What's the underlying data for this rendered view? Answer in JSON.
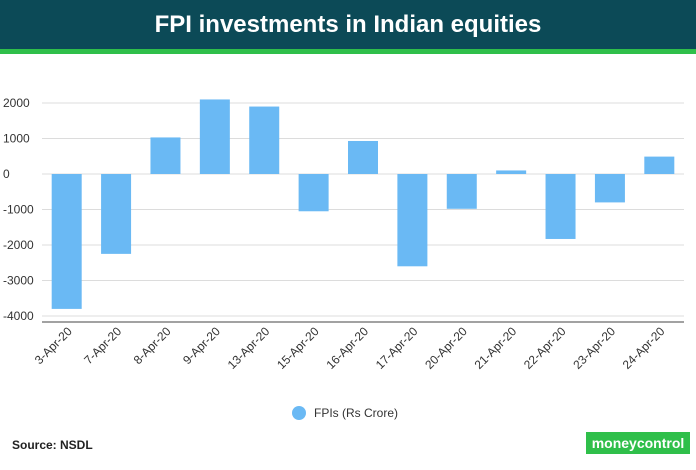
{
  "header": {
    "title": "FPI investments in Indian equities"
  },
  "legend": {
    "label": "FPIs (Rs Crore)"
  },
  "footer": {
    "source": "Source: NSDL",
    "logo_text": "moneycontrol"
  },
  "colors": {
    "bar": "#6ab9f4",
    "header_bg": "#0c4a57",
    "accent": "#2fbf4a"
  },
  "chart_data": {
    "type": "bar",
    "title": "FPI investments in Indian equities",
    "xlabel": "",
    "ylabel": "",
    "ylim": [
      -4000,
      2000
    ],
    "yticks": [
      2000,
      1000,
      0,
      -1000,
      -2000,
      -3000,
      -4000
    ],
    "grid": true,
    "legend_position": "bottom",
    "categories": [
      "3-Apr-20",
      "7-Apr-20",
      "8-Apr-20",
      "9-Apr-20",
      "13-Apr-20",
      "15-Apr-20",
      "16-Apr-20",
      "17-Apr-20",
      "20-Apr-20",
      "21-Apr-20",
      "22-Apr-20",
      "23-Apr-20",
      "24-Apr-20"
    ],
    "series": [
      {
        "name": "FPIs (Rs Crore)",
        "values": [
          -3800,
          -2250,
          1030,
          2100,
          1900,
          -1050,
          930,
          -2600,
          -980,
          100,
          -1830,
          -800,
          490
        ]
      }
    ]
  }
}
